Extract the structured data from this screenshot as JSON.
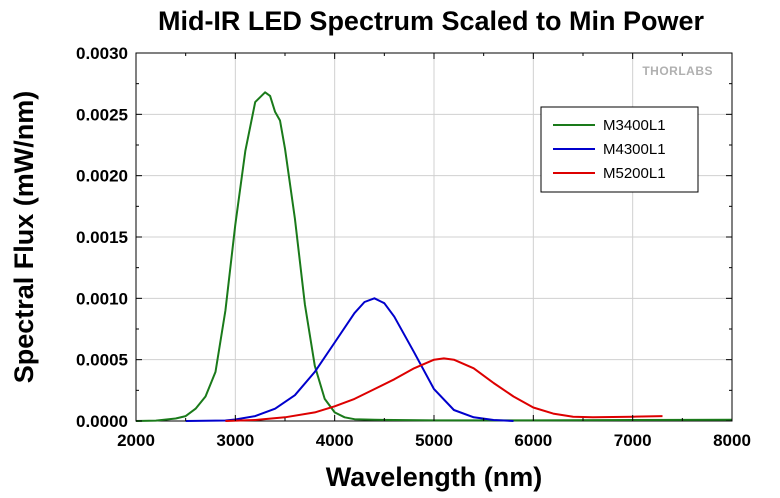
{
  "chart_data": {
    "type": "line",
    "title": "Mid-IR LED Spectrum Scaled to Min Power",
    "xlabel": "Wavelength (nm)",
    "ylabel": "Spectral Flux (mW/nm)",
    "xlim": [
      2000,
      8000
    ],
    "ylim": [
      0,
      0.003
    ],
    "x_ticks": [
      2000,
      3000,
      4000,
      5000,
      6000,
      7000,
      8000
    ],
    "x_tick_labels": [
      "2000",
      "3000",
      "4000",
      "5000",
      "6000",
      "7000",
      "8000"
    ],
    "y_ticks": [
      0,
      0.0005,
      0.001,
      0.0015,
      0.002,
      0.0025,
      0.003
    ],
    "y_tick_labels": [
      "0.0000",
      "0.0005",
      "0.0010",
      "0.0015",
      "0.0020",
      "0.0025",
      "0.0030"
    ],
    "grid": true,
    "legend_position": "top-right",
    "watermark": "THORLABS",
    "series": [
      {
        "name": "M3400L1",
        "color": "#1a7a1a",
        "x": [
          2000,
          2200,
          2400,
          2500,
          2600,
          2700,
          2800,
          2900,
          3000,
          3100,
          3200,
          3300,
          3350,
          3400,
          3450,
          3500,
          3600,
          3700,
          3800,
          3900,
          4000,
          4100,
          4200,
          4400,
          5000,
          6000,
          7000,
          8000
        ],
        "y": [
          0,
          3e-06,
          2e-05,
          4e-05,
          0.0001,
          0.0002,
          0.0004,
          0.0009,
          0.0016,
          0.0022,
          0.0026,
          0.00268,
          0.00265,
          0.00252,
          0.00245,
          0.00222,
          0.00165,
          0.00095,
          0.00045,
          0.00018,
          7e-05,
          3e-05,
          1.5e-05,
          1e-05,
          5e-06,
          5e-06,
          8e-06,
          1e-05
        ]
      },
      {
        "name": "M4300L1",
        "color": "#0000cc",
        "x": [
          2500,
          2900,
          3000,
          3200,
          3400,
          3600,
          3800,
          4000,
          4200,
          4300,
          4400,
          4500,
          4600,
          4800,
          5000,
          5200,
          5400,
          5600,
          5800
        ],
        "y": [
          0,
          4e-06,
          1.2e-05,
          4e-05,
          0.0001,
          0.00021,
          0.0004,
          0.00064,
          0.00088,
          0.00097,
          0.001,
          0.00096,
          0.00085,
          0.00056,
          0.00026,
          9e-05,
          3e-05,
          8e-06,
          0
        ]
      },
      {
        "name": "M5200L1",
        "color": "#dd0000",
        "x": [
          2900,
          3200,
          3500,
          3800,
          4000,
          4200,
          4400,
          4600,
          4800,
          5000,
          5100,
          5200,
          5400,
          5600,
          5800,
          6000,
          6200,
          6400,
          6600,
          7000,
          7300
        ],
        "y": [
          0,
          8e-06,
          3e-05,
          7e-05,
          0.00012,
          0.00018,
          0.00026,
          0.00034,
          0.00043,
          0.0005,
          0.00051,
          0.0005,
          0.00043,
          0.00031,
          0.0002,
          0.00011,
          6e-05,
          3.5e-05,
          3e-05,
          3.5e-05,
          4e-05
        ]
      }
    ]
  }
}
